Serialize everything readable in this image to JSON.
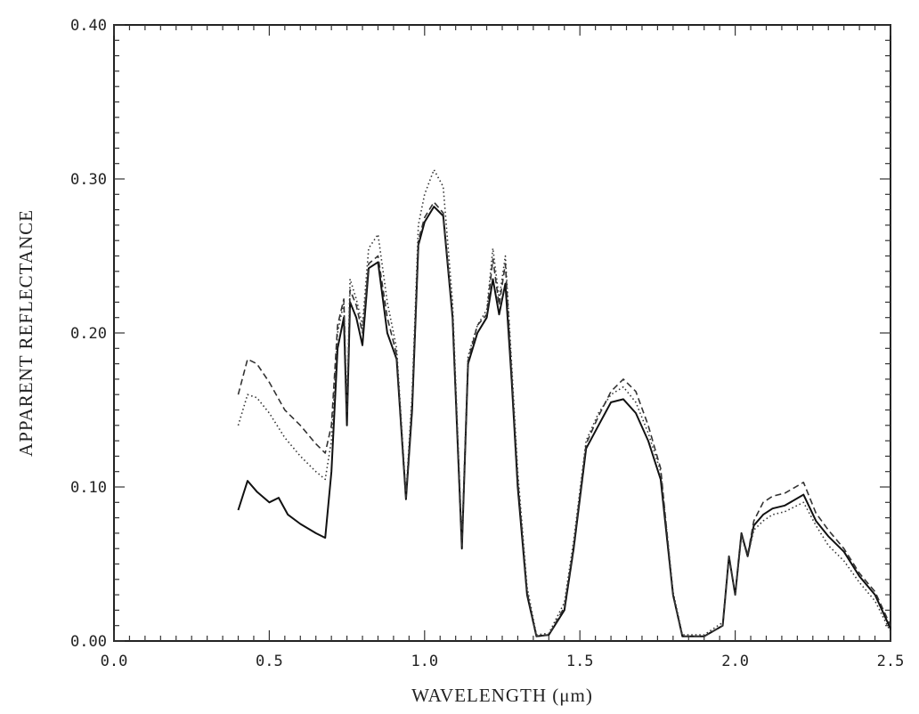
{
  "chart_data": {
    "type": "line",
    "xlabel": "WAVELENGTH (μm)",
    "ylabel": "APPARENT REFLECTANCE",
    "xlim": [
      0.0,
      2.5
    ],
    "ylim": [
      0.0,
      0.4
    ],
    "xticks": [
      "0.0",
      "0.5",
      "1.0",
      "1.5",
      "2.0",
      "2.5"
    ],
    "yticks": [
      "0.00",
      "0.10",
      "0.20",
      "0.30",
      "0.40"
    ],
    "xtick_values": [
      0.0,
      0.5,
      1.0,
      1.5,
      2.0,
      2.5
    ],
    "ytick_values": [
      0.0,
      0.1,
      0.2,
      0.3,
      0.4
    ],
    "grid": false,
    "series": [
      {
        "style": "solid",
        "color": "#111111",
        "x": [
          0.4,
          0.43,
          0.46,
          0.5,
          0.53,
          0.56,
          0.6,
          0.65,
          0.68,
          0.7,
          0.72,
          0.74,
          0.75,
          0.76,
          0.78,
          0.8,
          0.82,
          0.85,
          0.88,
          0.91,
          0.94,
          0.96,
          0.98,
          1.0,
          1.03,
          1.06,
          1.09,
          1.12,
          1.14,
          1.17,
          1.2,
          1.22,
          1.24,
          1.26,
          1.28,
          1.3,
          1.33,
          1.36,
          1.4,
          1.45,
          1.48,
          1.52,
          1.56,
          1.6,
          1.64,
          1.68,
          1.72,
          1.76,
          1.8,
          1.83,
          1.9,
          1.96,
          1.98,
          2.0,
          2.02,
          2.04,
          2.06,
          2.09,
          2.12,
          2.16,
          2.22,
          2.26,
          2.3,
          2.35,
          2.4,
          2.45,
          2.5
        ],
        "y": [
          0.085,
          0.104,
          0.097,
          0.09,
          0.093,
          0.082,
          0.076,
          0.07,
          0.067,
          0.11,
          0.19,
          0.21,
          0.14,
          0.22,
          0.21,
          0.192,
          0.242,
          0.246,
          0.2,
          0.183,
          0.092,
          0.15,
          0.257,
          0.272,
          0.282,
          0.276,
          0.21,
          0.06,
          0.18,
          0.2,
          0.21,
          0.235,
          0.212,
          0.232,
          0.17,
          0.1,
          0.03,
          0.003,
          0.004,
          0.02,
          0.06,
          0.125,
          0.14,
          0.155,
          0.157,
          0.148,
          0.13,
          0.105,
          0.03,
          0.003,
          0.003,
          0.01,
          0.055,
          0.03,
          0.07,
          0.055,
          0.075,
          0.082,
          0.086,
          0.088,
          0.095,
          0.078,
          0.068,
          0.058,
          0.042,
          0.03,
          0.008
        ]
      },
      {
        "style": "dotted",
        "color": "#333333",
        "x": [
          0.4,
          0.43,
          0.46,
          0.5,
          0.55,
          0.6,
          0.65,
          0.68,
          0.7,
          0.72,
          0.74,
          0.75,
          0.76,
          0.78,
          0.8,
          0.82,
          0.85,
          0.88,
          0.91,
          0.94,
          0.96,
          0.98,
          1.0,
          1.03,
          1.06,
          1.09,
          1.12,
          1.14,
          1.17,
          1.2,
          1.22,
          1.24,
          1.26,
          1.28,
          1.3,
          1.33,
          1.36,
          1.4,
          1.45,
          1.48,
          1.52,
          1.56,
          1.6,
          1.64,
          1.68,
          1.72,
          1.76,
          1.8,
          1.83,
          1.9,
          1.96,
          1.98,
          2.0,
          2.02,
          2.04,
          2.06,
          2.09,
          2.12,
          2.16,
          2.22,
          2.26,
          2.3,
          2.35,
          2.4,
          2.45,
          2.5
        ],
        "y": [
          0.14,
          0.16,
          0.158,
          0.148,
          0.132,
          0.12,
          0.11,
          0.105,
          0.13,
          0.2,
          0.22,
          0.15,
          0.235,
          0.222,
          0.205,
          0.255,
          0.264,
          0.22,
          0.19,
          0.095,
          0.16,
          0.27,
          0.29,
          0.306,
          0.295,
          0.22,
          0.065,
          0.185,
          0.205,
          0.215,
          0.255,
          0.222,
          0.25,
          0.18,
          0.11,
          0.035,
          0.004,
          0.005,
          0.025,
          0.065,
          0.13,
          0.148,
          0.16,
          0.165,
          0.155,
          0.135,
          0.11,
          0.032,
          0.004,
          0.004,
          0.012,
          0.055,
          0.03,
          0.068,
          0.055,
          0.072,
          0.078,
          0.082,
          0.084,
          0.09,
          0.075,
          0.062,
          0.052,
          0.038,
          0.026,
          0.006
        ]
      },
      {
        "style": "dashed",
        "color": "#333333",
        "x": [
          0.4,
          0.43,
          0.46,
          0.5,
          0.55,
          0.6,
          0.65,
          0.68,
          0.7,
          0.72,
          0.74,
          0.75,
          0.76,
          0.78,
          0.8,
          0.82,
          0.85,
          0.88,
          0.91,
          0.94,
          0.96,
          0.98,
          1.0,
          1.03,
          1.06,
          1.09,
          1.12,
          1.14,
          1.17,
          1.2,
          1.22,
          1.24,
          1.26,
          1.28,
          1.3,
          1.33,
          1.36,
          1.4,
          1.45,
          1.48,
          1.52,
          1.56,
          1.6,
          1.64,
          1.68,
          1.72,
          1.76,
          1.8,
          1.83,
          1.9,
          1.96,
          1.98,
          2.0,
          2.02,
          2.04,
          2.06,
          2.09,
          2.12,
          2.16,
          2.22,
          2.26,
          2.3,
          2.35,
          2.4,
          2.45,
          2.5
        ],
        "y": [
          0.16,
          0.183,
          0.18,
          0.168,
          0.15,
          0.14,
          0.128,
          0.122,
          0.14,
          0.205,
          0.222,
          0.148,
          0.228,
          0.218,
          0.2,
          0.245,
          0.25,
          0.21,
          0.186,
          0.093,
          0.155,
          0.26,
          0.275,
          0.285,
          0.278,
          0.212,
          0.062,
          0.182,
          0.205,
          0.212,
          0.248,
          0.218,
          0.245,
          0.175,
          0.105,
          0.032,
          0.003,
          0.004,
          0.022,
          0.062,
          0.128,
          0.146,
          0.162,
          0.17,
          0.162,
          0.14,
          0.112,
          0.03,
          0.003,
          0.003,
          0.01,
          0.055,
          0.03,
          0.07,
          0.056,
          0.078,
          0.09,
          0.094,
          0.096,
          0.103,
          0.083,
          0.072,
          0.06,
          0.044,
          0.032,
          0.01
        ]
      }
    ]
  }
}
